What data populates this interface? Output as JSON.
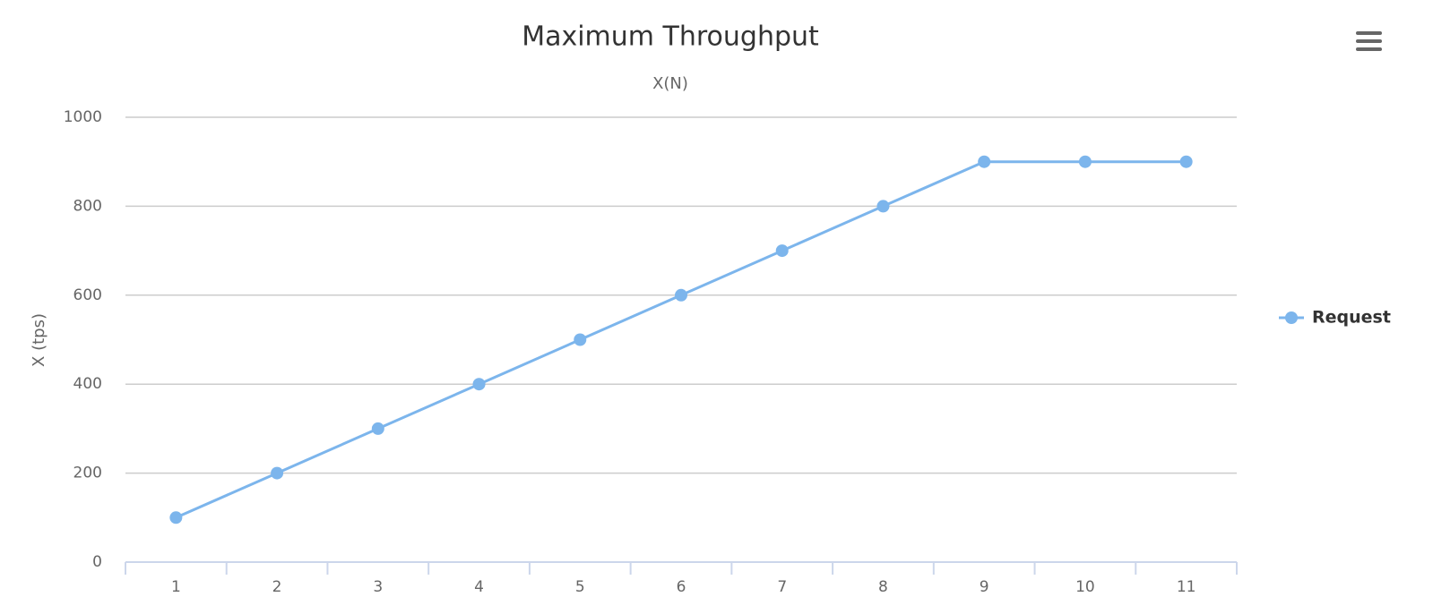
{
  "chart_data": {
    "type": "line",
    "title": "Maximum Throughput",
    "subtitle": "X(N)",
    "y_label": "X (tps)",
    "categories": [
      "1",
      "2",
      "3",
      "4",
      "5",
      "6",
      "7",
      "8",
      "9",
      "10",
      "11"
    ],
    "series": [
      {
        "name": "Request",
        "color": "#7cb5ec",
        "values": [
          100,
          200,
          300,
          400,
          500,
          600,
          700,
          800,
          900,
          900,
          900
        ]
      }
    ],
    "ylim": [
      0,
      1000
    ],
    "yticks": [
      0,
      200,
      400,
      600,
      800,
      1000
    ],
    "grid": true,
    "legend": "right"
  }
}
